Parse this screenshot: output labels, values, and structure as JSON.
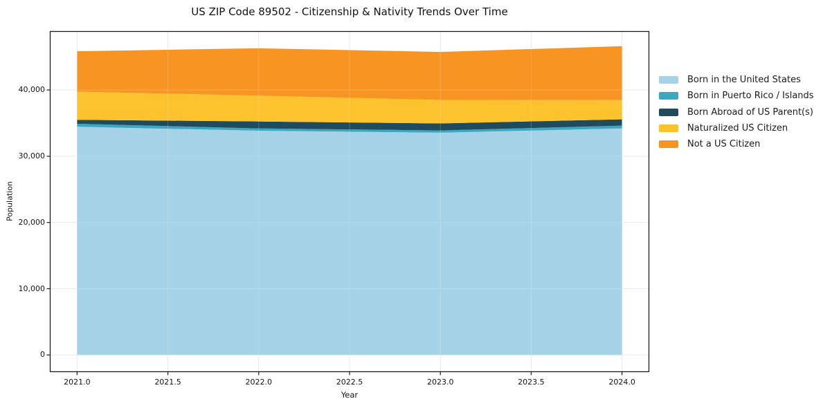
{
  "chart_data": {
    "type": "area",
    "stacked": true,
    "title": "US ZIP Code 89502 - Citizenship & Nativity Trends Over Time",
    "xlabel": "Year",
    "ylabel": "Population",
    "x": [
      2021,
      2022,
      2023,
      2024
    ],
    "series": [
      {
        "name": "Born in the United States",
        "color": "#A6D2E7",
        "values": [
          34450,
          33850,
          33550,
          34200
        ]
      },
      {
        "name": "Born in Puerto Rico / Islands",
        "color": "#3BA7C1",
        "values": [
          450,
          350,
          350,
          420
        ]
      },
      {
        "name": "Born Abroad of US Parent(s)",
        "color": "#1F4B5E",
        "values": [
          600,
          1050,
          1050,
          950
        ]
      },
      {
        "name": "Naturalized US Citizen",
        "color": "#FDC32F",
        "values": [
          4250,
          3900,
          3550,
          2900
        ]
      },
      {
        "name": "Not a US Citizen",
        "color": "#F79422",
        "values": [
          6100,
          7150,
          7250,
          8150
        ]
      }
    ],
    "totals": [
      45850,
      46300,
      45750,
      46620
    ],
    "x_ticks": [
      2021.0,
      2021.5,
      2022.0,
      2022.5,
      2023.0,
      2023.5,
      2024.0
    ],
    "x_tick_labels": [
      "2021.0",
      "2021.5",
      "2022.0",
      "2022.5",
      "2023.0",
      "2023.5",
      "2024.0"
    ],
    "y_ticks": [
      0,
      10000,
      20000,
      30000,
      40000
    ],
    "y_tick_labels": [
      "0",
      "10,000",
      "20,000",
      "30,000",
      "40,000"
    ],
    "xlim": [
      2020.85,
      2024.15
    ],
    "ylim": [
      -2580,
      48890
    ],
    "grid": true,
    "legend_position": "right-outside"
  },
  "colors": {
    "background": "#FFFFFF",
    "grid": "#E4E4E4",
    "grid_over_area": "rgba(255,255,255,0.20)",
    "frame": "#1A1A1A",
    "text": "#111111"
  }
}
